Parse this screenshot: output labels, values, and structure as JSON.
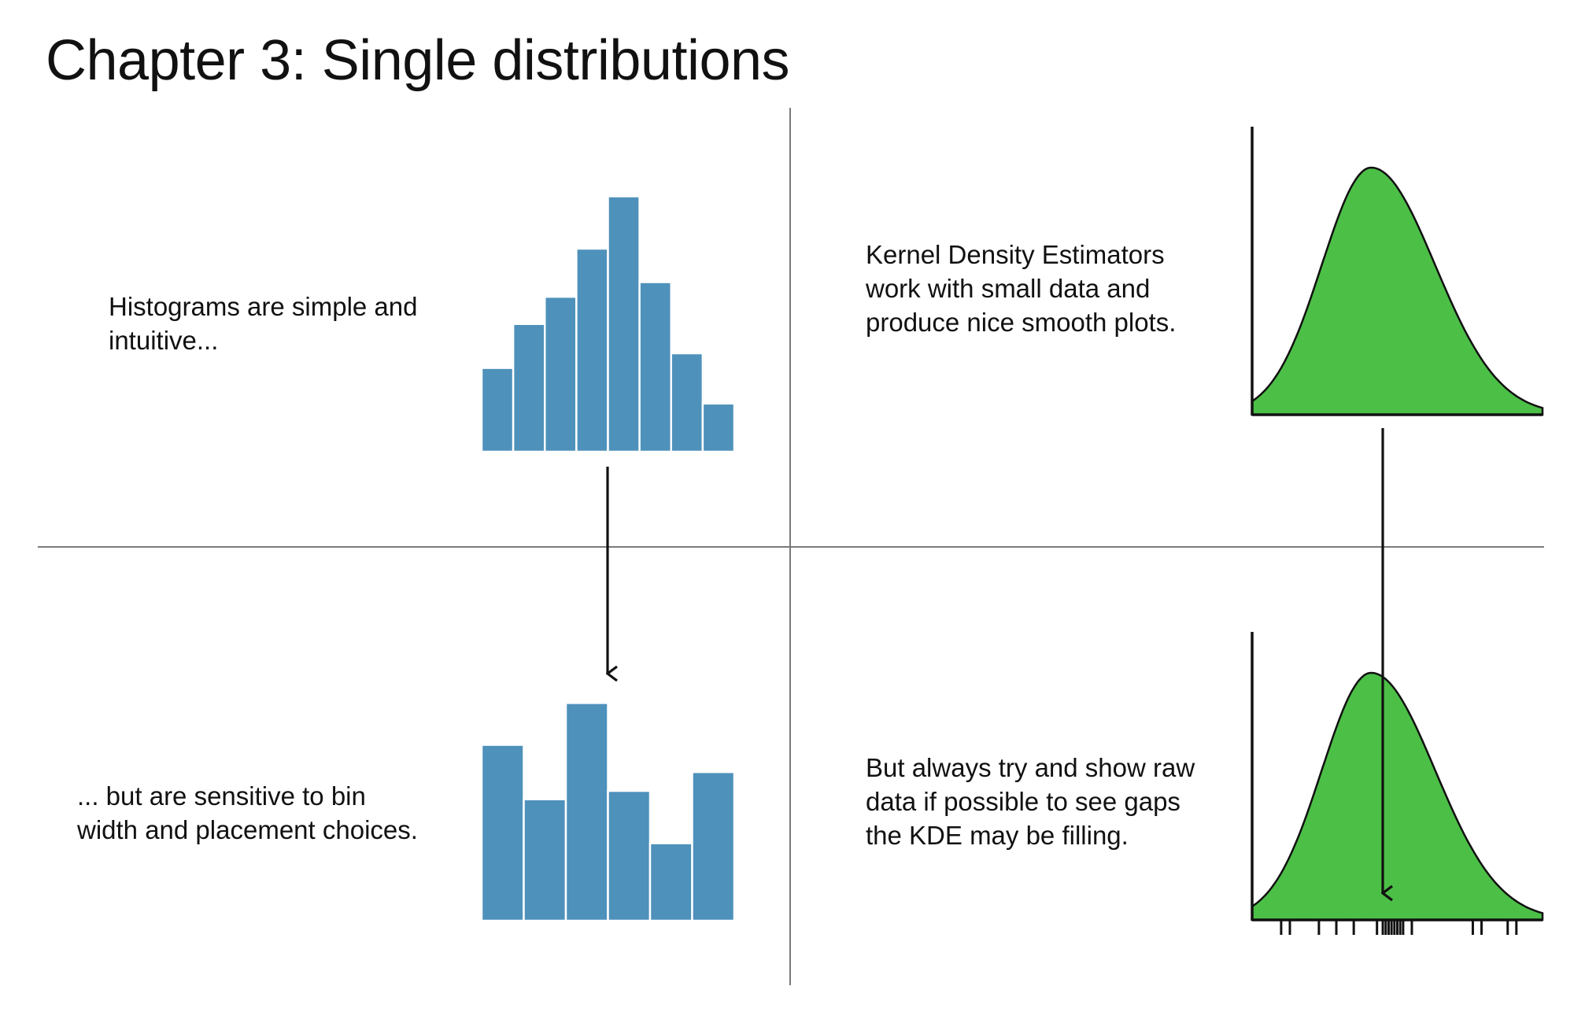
{
  "title": "Chapter 3: Single distributions",
  "notes": {
    "histogram": "Histograms are simple and intuitive...",
    "bins": "... but are sensitive to bin width and placement choices.",
    "kde": "Kernel Density Estimators work with small data and produce nice smooth plots.",
    "rug": "But always try and show raw data if possible to see gaps the KDE may be filling."
  },
  "colors": {
    "histogram_bar": "#4e91bb",
    "kde_fill": "#4cbf47",
    "divider": "#7a7a7a",
    "ink": "#111111"
  },
  "chart_data": [
    {
      "type": "bar",
      "panel": "histogram-fine-bins",
      "categories": [
        "1",
        "2",
        "3",
        "4",
        "5",
        "6",
        "7",
        "8"
      ],
      "values": [
        4,
        6.1,
        7.4,
        9.7,
        12.2,
        8.1,
        4.7,
        2.3
      ],
      "title": "",
      "xlabel": "",
      "ylabel": ""
    },
    {
      "type": "bar",
      "panel": "histogram-coarse-bins",
      "categories": [
        "1",
        "2",
        "3",
        "4",
        "5",
        "6"
      ],
      "values": [
        8.4,
        5.8,
        10.4,
        6.2,
        3.7,
        7.1
      ],
      "title": "",
      "xlabel": "",
      "ylabel": ""
    },
    {
      "type": "area",
      "panel": "kde-curve",
      "x_range": [
        0,
        1
      ],
      "peak_x": 0.41,
      "title": "",
      "xlabel": "",
      "ylabel": ""
    },
    {
      "type": "area",
      "panel": "kde-curve-with-rug",
      "x_range": [
        0,
        1
      ],
      "peak_x": 0.41,
      "rug": [
        0.1,
        0.13,
        0.23,
        0.29,
        0.35,
        0.43,
        0.45,
        0.46,
        0.47,
        0.48,
        0.49,
        0.5,
        0.51,
        0.52,
        0.55,
        0.76,
        0.79,
        0.88,
        0.91
      ],
      "title": "",
      "xlabel": "",
      "ylabel": ""
    }
  ]
}
